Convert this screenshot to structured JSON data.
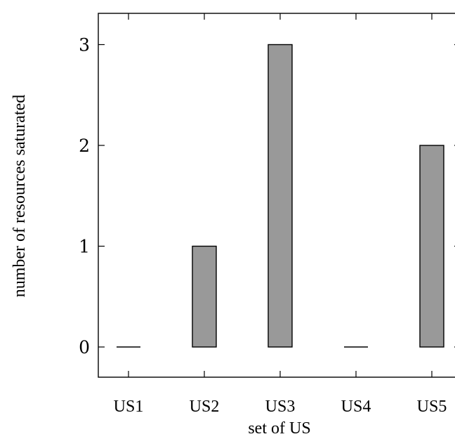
{
  "chart_data": {
    "type": "bar",
    "title": "",
    "xlabel": "set of US",
    "ylabel": "number of resources saturated",
    "categories": [
      "US1",
      "US2",
      "US3",
      "US4",
      "US5"
    ],
    "values": [
      0,
      1,
      3,
      0,
      2
    ],
    "ylim": [
      -0.3,
      3.3
    ],
    "yticks": [
      "0",
      "1",
      "2",
      "3"
    ],
    "bar_color": "#999999",
    "bar_edge_color": "#000000",
    "grid": false,
    "legend": "none"
  }
}
